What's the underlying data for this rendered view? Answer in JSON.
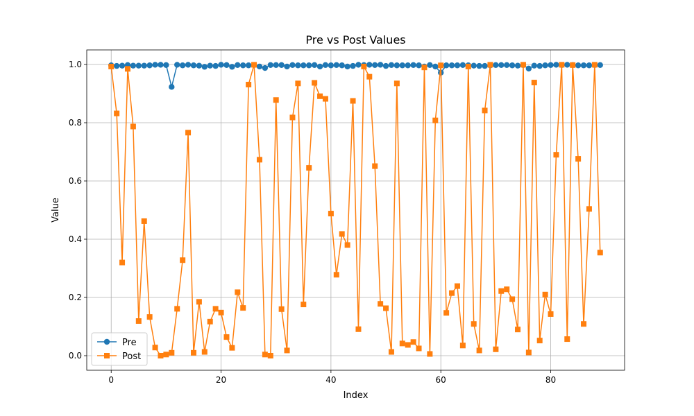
{
  "chart_data": {
    "type": "line",
    "title": "Pre vs Post Values",
    "xlabel": "Index",
    "ylabel": "Value",
    "xlim": [
      -4.45,
      93.45
    ],
    "ylim": [
      -0.05,
      1.05
    ],
    "xticks": [
      0,
      20,
      40,
      60,
      80
    ],
    "yticks": [
      0.0,
      0.2,
      0.4,
      0.6,
      0.8,
      1.0
    ],
    "xtick_labels": [
      "0",
      "20",
      "40",
      "60",
      "80"
    ],
    "ytick_labels": [
      "0.0",
      "0.2",
      "0.4",
      "0.6",
      "0.8",
      "1.0"
    ],
    "grid": true,
    "legend_position": "lower-left",
    "x": [
      0,
      1,
      2,
      3,
      4,
      5,
      6,
      7,
      8,
      9,
      10,
      11,
      12,
      13,
      14,
      15,
      16,
      17,
      18,
      19,
      20,
      21,
      22,
      23,
      24,
      25,
      26,
      27,
      28,
      29,
      30,
      31,
      32,
      33,
      34,
      35,
      36,
      37,
      38,
      39,
      40,
      41,
      42,
      43,
      44,
      45,
      46,
      47,
      48,
      49,
      50,
      51,
      52,
      53,
      54,
      55,
      56,
      57,
      58,
      59,
      60,
      61,
      62,
      63,
      64,
      65,
      66,
      67,
      68,
      69,
      70,
      71,
      72,
      73,
      74,
      75,
      76,
      77,
      78,
      79,
      80,
      81,
      82,
      83,
      84,
      85,
      86,
      87,
      88,
      89
    ],
    "series": [
      {
        "name": "Pre",
        "color": "#1f77b4",
        "marker": "circle",
        "values": [
          0.997,
          0.995,
          0.996,
          0.998,
          0.996,
          0.996,
          0.996,
          0.997,
          0.999,
          0.999,
          0.998,
          0.923,
          0.999,
          0.997,
          0.999,
          0.997,
          0.996,
          0.992,
          0.996,
          0.995,
          0.999,
          0.998,
          0.992,
          0.998,
          0.997,
          0.997,
          0.998,
          0.993,
          0.988,
          0.998,
          0.998,
          0.998,
          0.993,
          0.998,
          0.997,
          0.997,
          0.997,
          0.998,
          0.993,
          0.998,
          0.997,
          0.998,
          0.997,
          0.993,
          0.995,
          0.999,
          0.998,
          0.999,
          0.998,
          0.999,
          0.995,
          0.998,
          0.997,
          0.997,
          0.997,
          0.998,
          0.997,
          0.993,
          0.998,
          0.993,
          0.972,
          0.997,
          0.997,
          0.997,
          0.998,
          0.997,
          0.996,
          0.995,
          0.995,
          0.997,
          0.998,
          0.998,
          0.998,
          0.997,
          0.996,
          0.998,
          0.986,
          0.996,
          0.995,
          0.997,
          0.998,
          0.999,
          0.998,
          0.999,
          0.998,
          0.997,
          0.997,
          0.997,
          0.998,
          0.998
        ]
      },
      {
        "name": "Post",
        "color": "#ff7f0e",
        "marker": "square",
        "values": [
          0.993,
          0.832,
          0.32,
          0.985,
          0.787,
          0.119,
          0.462,
          0.133,
          0.028,
          0.0,
          0.004,
          0.01,
          0.161,
          0.328,
          0.766,
          0.01,
          0.185,
          0.013,
          0.117,
          0.161,
          0.148,
          0.064,
          0.027,
          0.218,
          0.164,
          0.931,
          0.999,
          0.673,
          0.004,
          0.0,
          0.878,
          0.16,
          0.018,
          0.818,
          0.935,
          0.176,
          0.645,
          0.937,
          0.891,
          0.882,
          0.488,
          0.278,
          0.418,
          0.38,
          0.875,
          0.091,
          0.993,
          0.958,
          0.651,
          0.178,
          0.163,
          0.013,
          0.935,
          0.042,
          0.037,
          0.047,
          0.025,
          0.99,
          0.006,
          0.808,
          0.997,
          0.147,
          0.215,
          0.239,
          0.035,
          0.993,
          0.109,
          0.018,
          0.842,
          0.999,
          0.022,
          0.222,
          0.228,
          0.194,
          0.09,
          0.999,
          0.011,
          0.938,
          0.052,
          0.21,
          0.143,
          0.69,
          0.999,
          0.057,
          0.998,
          0.676,
          0.109,
          0.504,
          0.999,
          0.354
        ]
      }
    ]
  }
}
